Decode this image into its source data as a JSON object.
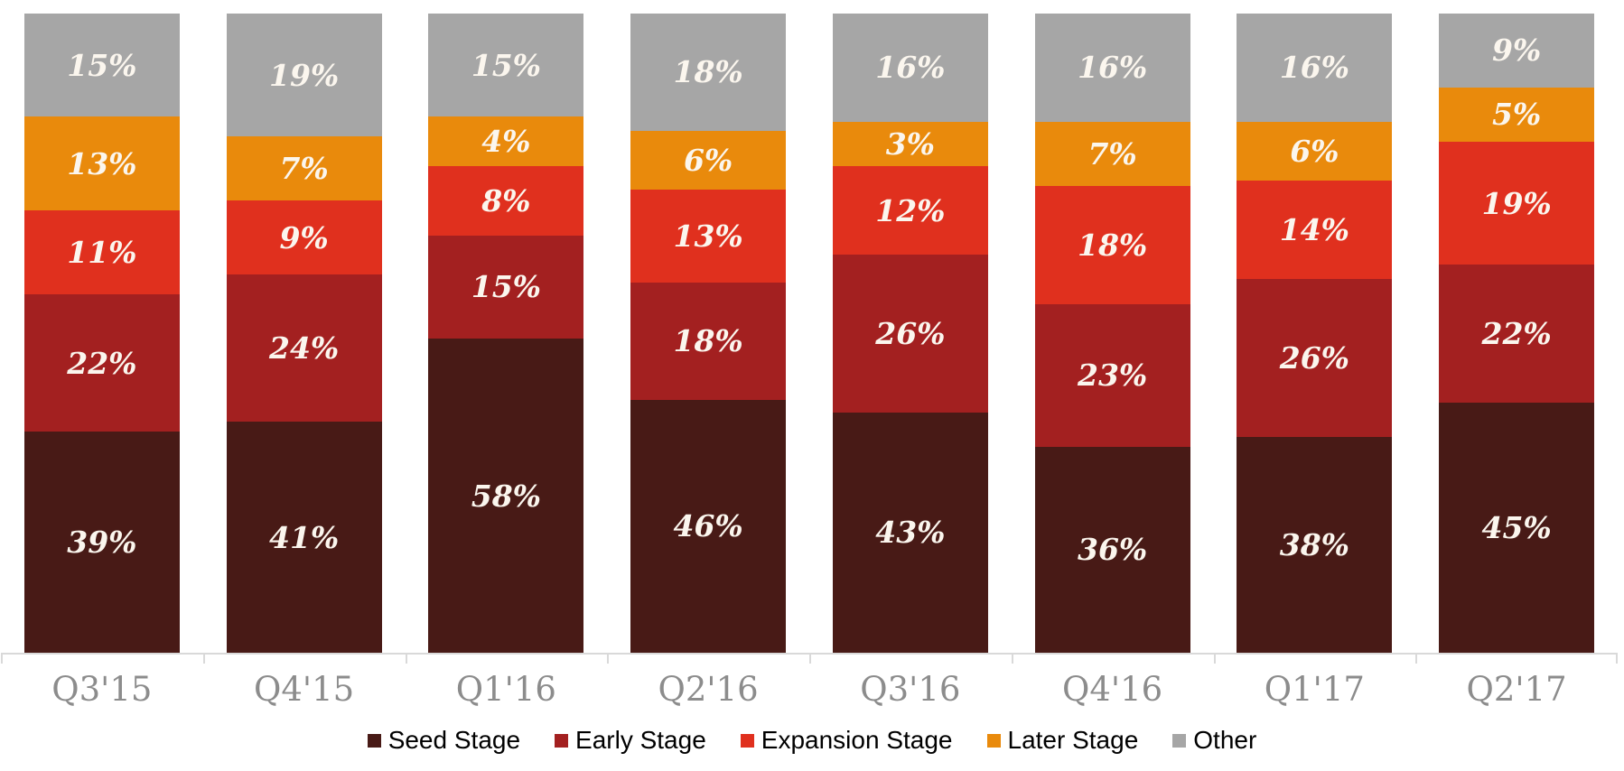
{
  "chart_data": {
    "type": "bar",
    "variant": "stacked-100-percent-column",
    "title": "",
    "xlabel": "",
    "ylabel": "",
    "grid": false,
    "legend_position": "bottom",
    "value_suffix": "%",
    "categories": [
      "Q3'15",
      "Q4'15",
      "Q1'16",
      "Q2'16",
      "Q3'16",
      "Q4'16",
      "Q1'17",
      "Q2'17"
    ],
    "series": [
      {
        "name": "Seed Stage",
        "color": "#481a16",
        "values": [
          39,
          41,
          58,
          46,
          43,
          36,
          38,
          45
        ]
      },
      {
        "name": "Early Stage",
        "color": "#a32020",
        "values": [
          22,
          24,
          15,
          18,
          26,
          23,
          26,
          22
        ]
      },
      {
        "name": "Expansion Stage",
        "color": "#e0301e",
        "values": [
          11,
          9,
          8,
          13,
          12,
          18,
          14,
          19
        ]
      },
      {
        "name": "Later Stage",
        "color": "#e98a0c",
        "values": [
          13,
          7,
          4,
          6,
          3,
          7,
          6,
          5
        ]
      },
      {
        "name": "Other",
        "color": "#a6a6a6",
        "values": [
          15,
          19,
          15,
          18,
          16,
          16,
          16,
          9
        ]
      }
    ],
    "colors": {
      "value_label": "#fbf6ee",
      "category_label": "#8c8c8c",
      "axis_line": "#d9d9d9",
      "legend_text": "#000000",
      "background": "#ffffff"
    }
  }
}
